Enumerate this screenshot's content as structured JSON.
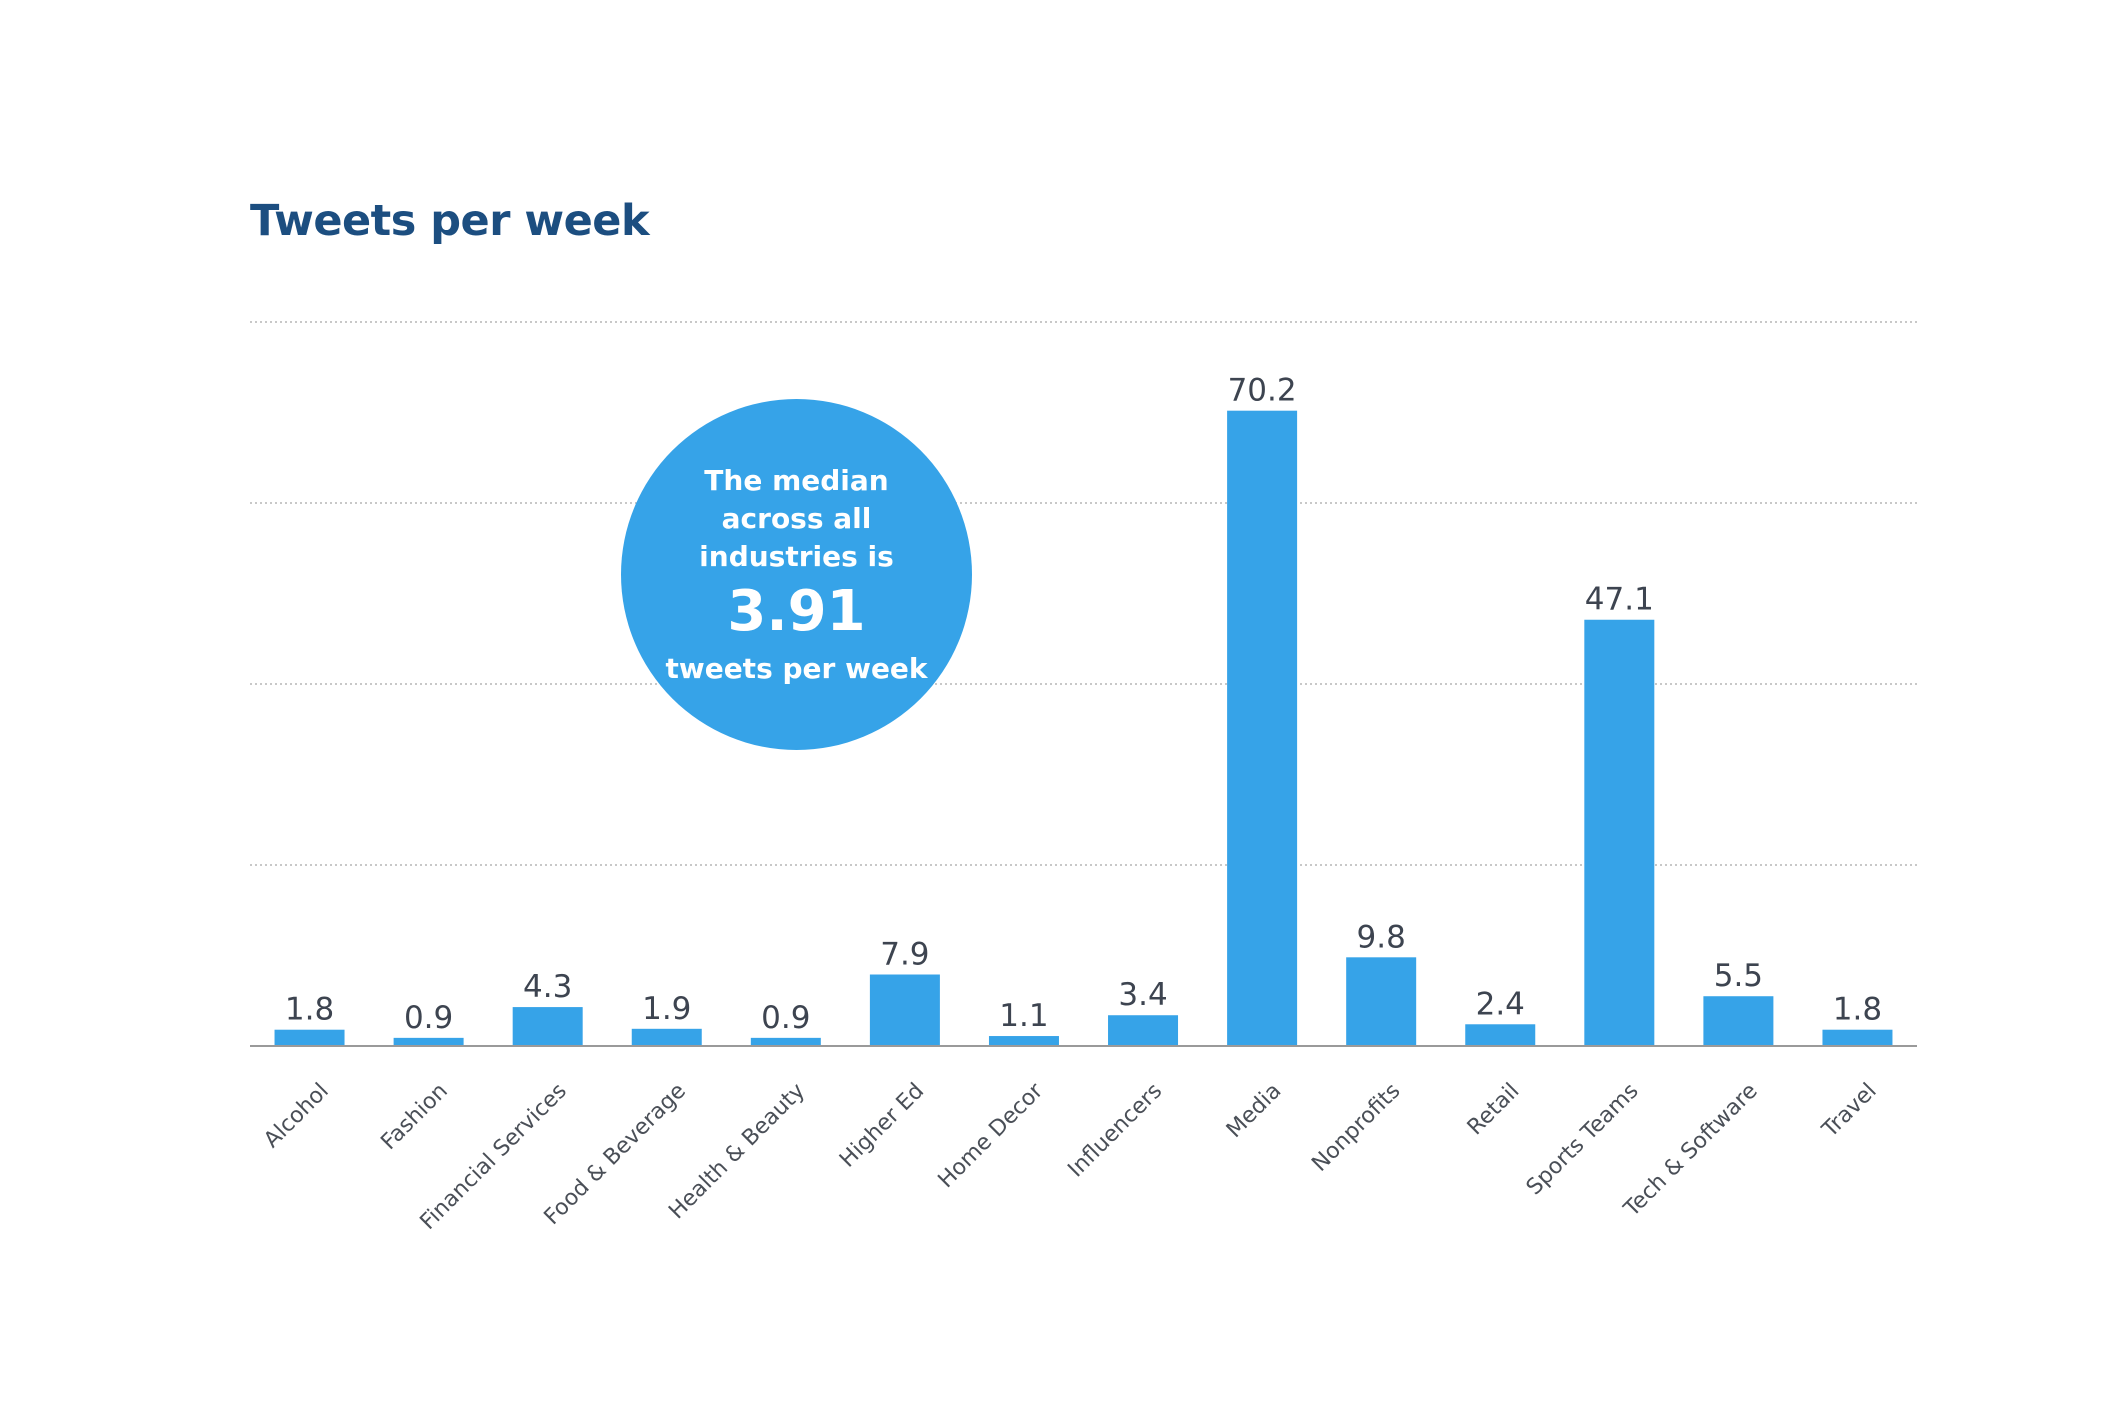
{
  "chart_data": {
    "type": "bar",
    "title": "Tweets per week",
    "xlabel": "",
    "ylabel": "",
    "ylim": [
      0,
      80
    ],
    "grid": true,
    "categories": [
      "Alcohol",
      "Fashion",
      "Financial Services",
      "Food & Beverage",
      "Health & Beauty",
      "Higher Ed",
      "Home Decor",
      "Influencers",
      "Media",
      "Nonprofits",
      "Retail",
      "Sports Teams",
      "Tech & Software",
      "Travel"
    ],
    "values": [
      1.8,
      0.9,
      4.3,
      1.9,
      0.9,
      7.9,
      1.1,
      3.4,
      70.2,
      9.8,
      2.4,
      47.1,
      5.5,
      1.8
    ],
    "value_labels": [
      "1.8",
      "0.9",
      "4.3",
      "1.9",
      "0.9",
      "7.9",
      "1.1",
      "3.4",
      "70.2",
      "9.8",
      "2.4",
      "47.1",
      "5.5",
      "1.8"
    ],
    "bar_color": "#36a3e8",
    "title_color": "#1c4e80",
    "annotation": {
      "lines": [
        "The median",
        "across all",
        "industries is"
      ],
      "value": "3.91",
      "unit": "tweets per week",
      "color": "#36a3e8"
    }
  }
}
